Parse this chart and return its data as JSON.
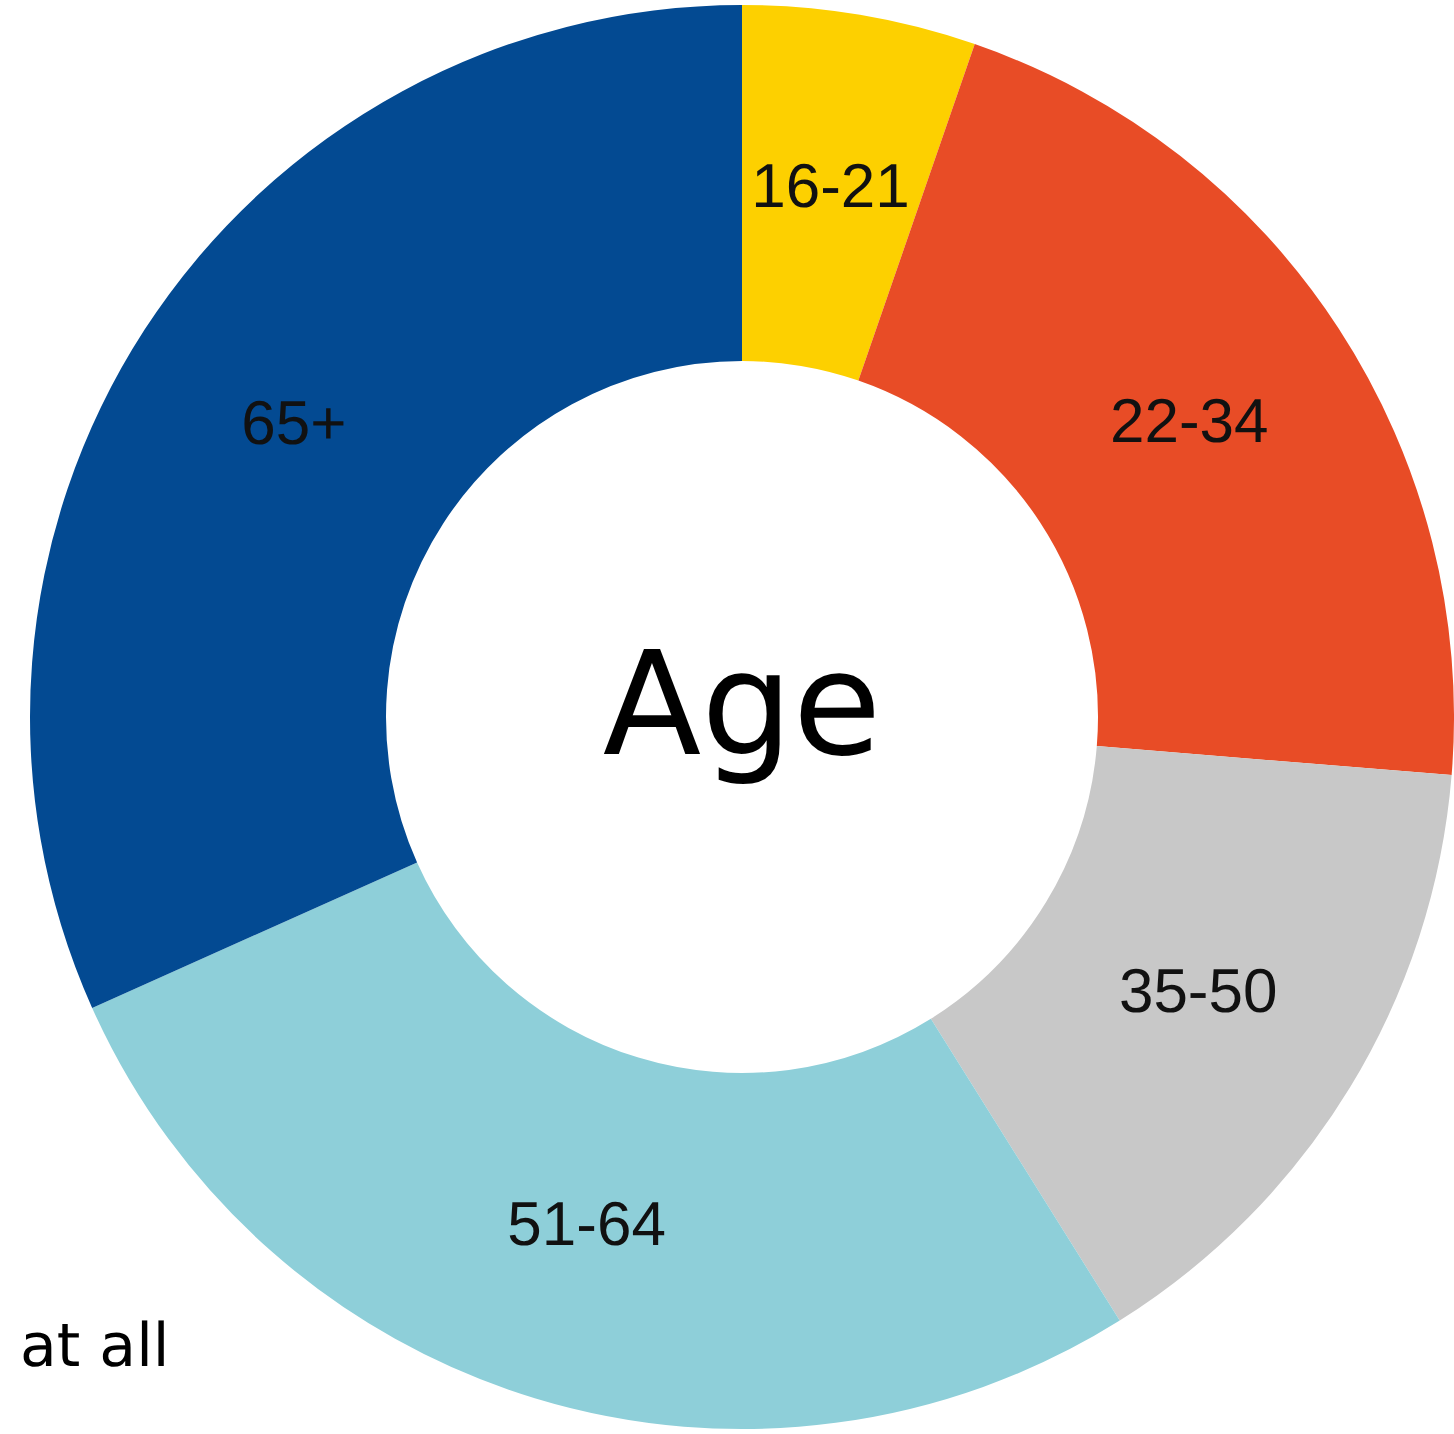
{
  "chart_data": {
    "type": "donut",
    "title": "Age",
    "categories": [
      "16-21",
      "22-34",
      "35-50",
      "51-64",
      "65+"
    ],
    "values": [
      5.3,
      21,
      14.8,
      27.2,
      31.7
    ],
    "colors": [
      "#fdd000",
      "#e84c26",
      "#c8c8c8",
      "#8ecfd9",
      "#034a92"
    ],
    "annotations": [
      "at all"
    ]
  }
}
